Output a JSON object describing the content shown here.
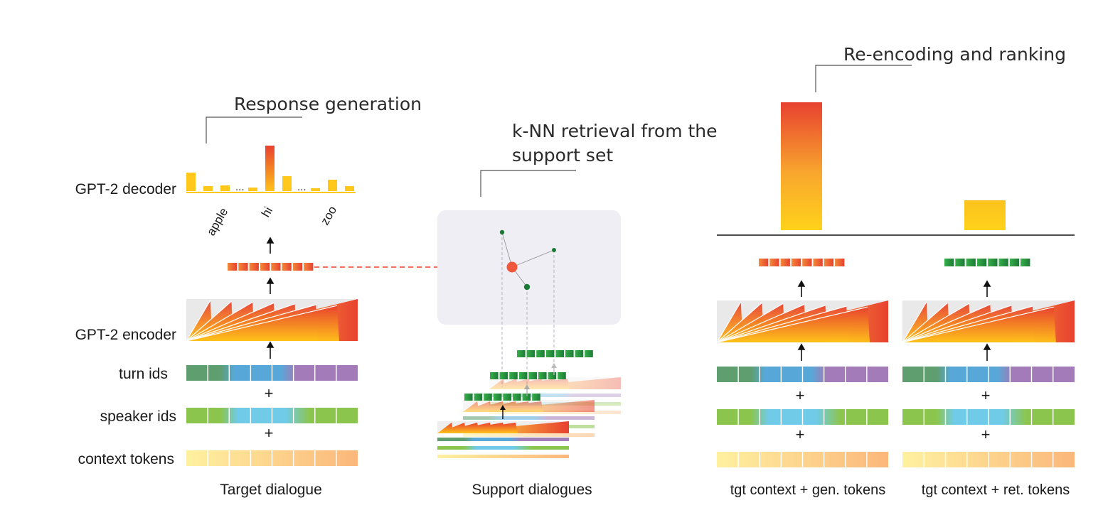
{
  "sections": {
    "response_generation": "Response generation",
    "knn_line1": "k-NN retrieval from the",
    "knn_line2": "support set",
    "reencoding": "Re-encoding and ranking"
  },
  "row_labels": {
    "decoder": "GPT-2 decoder",
    "encoder": "GPT-2 encoder",
    "turn_ids": "turn ids",
    "speaker_ids": "speaker ids",
    "context_tokens": "context tokens"
  },
  "vocab_labels": [
    "apple",
    "hi",
    "zoo"
  ],
  "ellipsis": "...",
  "plus": "+",
  "captions": {
    "target": "Target dialogue",
    "support": "Support dialogues",
    "gen": "tgt context + gen. tokens",
    "ret": "tgt context + ret. tokens"
  },
  "colors": {
    "red": "#e8412f",
    "orange": "#f28a3a",
    "yellow": "#ffd21a",
    "green_dark": "#1c8a3c",
    "green_light": "#36b04a",
    "turn_green": "#5f9e6f",
    "turn_blue": "#57a8d8",
    "turn_purple": "#a27bb8",
    "speaker_green": "#8cc54e",
    "speaker_blue": "#6fcbe8",
    "context_light": "#fff1a0",
    "context_dark": "#fbb77a",
    "panel_bg": "#efeef4"
  }
}
